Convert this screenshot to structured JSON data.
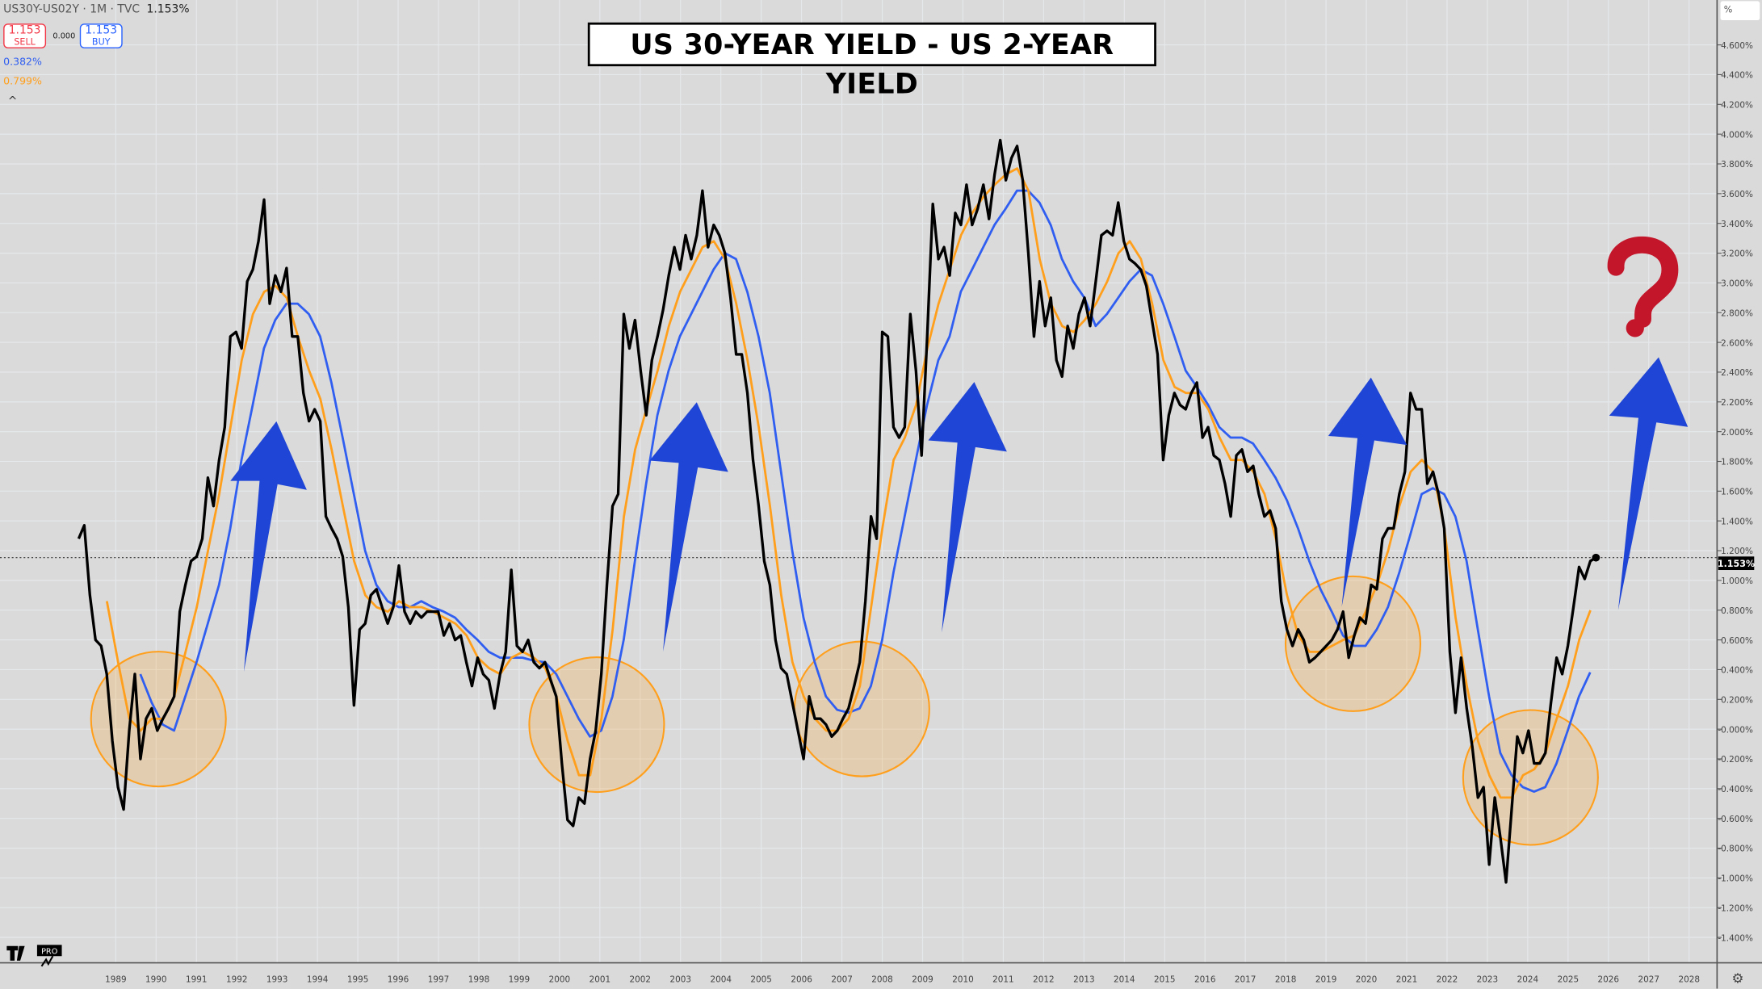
{
  "header": {
    "symbol": "US30Y-US02Y · 1M · TVC",
    "last": "1.153%"
  },
  "trade": {
    "sell_price": "1.153",
    "sell_label": "SELL",
    "spread": "0.000",
    "buy_price": "1.153",
    "buy_label": "BUY"
  },
  "legend": {
    "blue_value": "0.382%",
    "orange_value": "0.799%",
    "collapse": "^"
  },
  "title": "US 30-YEAR YIELD - US 2-YEAR YIELD",
  "axis_unit": "%",
  "last_price_label": "1.153%",
  "logo_text": "TV PRO",
  "colors": {
    "price": "#000000",
    "fast_ma": "#ff9f1c",
    "slow_ma": "#2f5ef0",
    "arrow": "#1f45d6",
    "question": "#c4162a",
    "circle": "#ff9f1c"
  },
  "chart_data": {
    "type": "line",
    "title": "US 30-YEAR YIELD - US 2-YEAR YIELD",
    "xlabel": "",
    "ylabel": "%",
    "xlim": [
      1986.1,
      2029.6
    ],
    "ylim": [
      -1.56,
      4.9
    ],
    "grid": true,
    "last_value": 1.153,
    "x_ticks": [
      "1989",
      "1990",
      "1991",
      "1992",
      "1993",
      "1994",
      "1995",
      "1996",
      "1997",
      "1998",
      "1999",
      "2000",
      "2001",
      "2002",
      "2003",
      "2004",
      "2005",
      "2006",
      "2007",
      "2008",
      "2009",
      "2010",
      "2011",
      "2012",
      "2013",
      "2014",
      "2015",
      "2016",
      "2017",
      "2018",
      "2019",
      "2020",
      "2021",
      "2022",
      "2023",
      "2024",
      "2025",
      "2026",
      "2027",
      "2028"
    ],
    "y_ticks": [
      "4.600%",
      "4.400%",
      "4.200%",
      "4.000%",
      "3.800%",
      "3.600%",
      "3.400%",
      "3.200%",
      "3.000%",
      "2.800%",
      "2.600%",
      "2.400%",
      "2.200%",
      "2.000%",
      "1.800%",
      "1.600%",
      "1.400%",
      "1.200%",
      "1.000%",
      "0.800%",
      "0.600%",
      "0.400%",
      "0.200%",
      "-0.000%",
      "-0.200%",
      "-0.400%",
      "-0.600%",
      "-0.800%",
      "-1.000%",
      "-1.200%",
      "-1.400%"
    ],
    "series": [
      {
        "name": "US30Y-US02Y",
        "color": "#000000",
        "x_start": 1988.08,
        "x_step": 0.1393,
        "values": [
          1.28,
          1.37,
          0.9,
          0.6,
          0.56,
          0.37,
          -0.08,
          -0.39,
          -0.54,
          -0.01,
          0.37,
          -0.2,
          0.07,
          0.14,
          -0.01,
          0.07,
          0.14,
          0.22,
          0.79,
          0.97,
          1.13,
          1.16,
          1.28,
          1.69,
          1.5,
          1.81,
          2.03,
          2.64,
          2.67,
          2.56,
          3.01,
          3.09,
          3.28,
          3.56,
          2.86,
          3.05,
          2.94,
          3.1,
          2.64,
          2.64,
          2.26,
          2.07,
          2.15,
          2.07,
          1.43,
          1.35,
          1.28,
          1.16,
          0.82,
          0.16,
          0.67,
          0.71,
          0.9,
          0.94,
          0.82,
          0.71,
          0.82,
          1.1,
          0.79,
          0.71,
          0.79,
          0.75,
          0.79,
          0.79,
          0.79,
          0.63,
          0.71,
          0.6,
          0.63,
          0.45,
          0.29,
          0.48,
          0.37,
          0.33,
          0.14,
          0.37,
          0.52,
          1.07,
          0.56,
          0.52,
          0.6,
          0.45,
          0.41,
          0.45,
          0.33,
          0.22,
          -0.23,
          -0.61,
          -0.65,
          -0.46,
          -0.5,
          -0.2,
          -0.01,
          0.37,
          0.97,
          1.5,
          1.58,
          2.79,
          2.56,
          2.75,
          2.41,
          2.11,
          2.48,
          2.64,
          2.82,
          3.05,
          3.24,
          3.09,
          3.32,
          3.16,
          3.32,
          3.62,
          3.24,
          3.39,
          3.32,
          3.2,
          2.9,
          2.52,
          2.52,
          2.26,
          1.81,
          1.5,
          1.13,
          0.97,
          0.6,
          0.41,
          0.37,
          0.18,
          -0.01,
          -0.2,
          0.22,
          0.07,
          0.07,
          0.03,
          -0.05,
          -0.01,
          0.07,
          0.14,
          0.29,
          0.45,
          0.86,
          1.43,
          1.28,
          2.67,
          2.64,
          2.03,
          1.96,
          2.03,
          2.79,
          2.41,
          1.84,
          2.64,
          3.53,
          3.16,
          3.24,
          3.05,
          3.47,
          3.39,
          3.66,
          3.39,
          3.5,
          3.66,
          3.43,
          3.73,
          3.96,
          3.69,
          3.84,
          3.92,
          3.69,
          3.2,
          2.64,
          3.01,
          2.71,
          2.9,
          2.48,
          2.37,
          2.71,
          2.56,
          2.79,
          2.9,
          2.71,
          3.01,
          3.32,
          3.35,
          3.32,
          3.54,
          3.28,
          3.16,
          3.13,
          3.09,
          2.98,
          2.75,
          2.52,
          1.81,
          2.11,
          2.26,
          2.18,
          2.15,
          2.26,
          2.33,
          1.96,
          2.03,
          1.84,
          1.81,
          1.65,
          1.43,
          1.84,
          1.88,
          1.73,
          1.77,
          1.58,
          1.43,
          1.47,
          1.35,
          0.86,
          0.67,
          0.56,
          0.67,
          0.6,
          0.45,
          0.48,
          0.52,
          0.56,
          0.6,
          0.67,
          0.79,
          0.48,
          0.63,
          0.75,
          0.71,
          0.97,
          0.94,
          1.28,
          1.35,
          1.35,
          1.58,
          1.73,
          2.26,
          2.15,
          2.15,
          1.65,
          1.73,
          1.58,
          1.35,
          0.52,
          0.11,
          0.48,
          0.14,
          -0.12,
          -0.46,
          -0.39,
          -0.91,
          -0.46,
          -0.73,
          -1.03,
          -0.54,
          -0.05,
          -0.16,
          -0.01,
          -0.23,
          -0.23,
          -0.16,
          0.18,
          0.48,
          0.37,
          0.56,
          0.82,
          1.09,
          1.01,
          1.13,
          1.153
        ]
      },
      {
        "name": "Fast MA",
        "color": "#ff9f1c",
        "x_start": 1988.78,
        "x_step": 0.2786,
        "values": [
          0.86,
          0.45,
          0.07,
          -0.01,
          0.07,
          0.07,
          0.22,
          0.52,
          0.82,
          1.2,
          1.58,
          2.03,
          2.48,
          2.79,
          2.94,
          2.98,
          2.9,
          2.64,
          2.41,
          2.22,
          1.88,
          1.5,
          1.13,
          0.9,
          0.82,
          0.79,
          0.86,
          0.82,
          0.82,
          0.79,
          0.75,
          0.71,
          0.63,
          0.48,
          0.41,
          0.37,
          0.48,
          0.52,
          0.48,
          0.41,
          0.22,
          -0.08,
          -0.31,
          -0.31,
          0.07,
          0.67,
          1.43,
          1.88,
          2.15,
          2.41,
          2.71,
          2.94,
          3.09,
          3.24,
          3.28,
          3.16,
          2.86,
          2.48,
          2.03,
          1.5,
          0.9,
          0.45,
          0.22,
          0.07,
          -0.01,
          -0.01,
          0.07,
          0.29,
          0.82,
          1.35,
          1.81,
          1.96,
          2.18,
          2.56,
          2.86,
          3.09,
          3.32,
          3.47,
          3.58,
          3.66,
          3.73,
          3.77,
          3.62,
          3.16,
          2.86,
          2.71,
          2.67,
          2.75,
          2.86,
          3.01,
          3.2,
          3.28,
          3.16,
          2.86,
          2.48,
          2.3,
          2.26,
          2.26,
          2.15,
          1.96,
          1.81,
          1.81,
          1.73,
          1.58,
          1.28,
          0.9,
          0.63,
          0.52,
          0.52,
          0.56,
          0.6,
          0.63,
          0.79,
          0.97,
          1.2,
          1.5,
          1.73,
          1.81,
          1.73,
          1.35,
          0.75,
          0.29,
          -0.08,
          -0.31,
          -0.46,
          -0.46,
          -0.31,
          -0.27,
          -0.16,
          0.07,
          0.29,
          0.6,
          0.799
        ]
      },
      {
        "name": "Slow MA",
        "color": "#2f5ef0",
        "x_start": 1989.61,
        "x_step": 0.2786,
        "values": [
          0.37,
          0.18,
          0.03,
          -0.01,
          0.22,
          0.45,
          0.71,
          0.97,
          1.35,
          1.81,
          2.18,
          2.56,
          2.75,
          2.86,
          2.86,
          2.79,
          2.64,
          2.33,
          1.96,
          1.58,
          1.2,
          0.97,
          0.86,
          0.82,
          0.82,
          0.86,
          0.82,
          0.79,
          0.75,
          0.67,
          0.6,
          0.52,
          0.48,
          0.48,
          0.48,
          0.46,
          0.45,
          0.37,
          0.22,
          0.07,
          -0.05,
          -0.01,
          0.22,
          0.6,
          1.13,
          1.65,
          2.11,
          2.41,
          2.64,
          2.79,
          2.94,
          3.09,
          3.2,
          3.16,
          2.94,
          2.64,
          2.26,
          1.73,
          1.2,
          0.75,
          0.45,
          0.22,
          0.13,
          0.11,
          0.14,
          0.29,
          0.6,
          1.05,
          1.43,
          1.81,
          2.18,
          2.48,
          2.64,
          2.94,
          3.09,
          3.24,
          3.39,
          3.5,
          3.62,
          3.62,
          3.54,
          3.39,
          3.16,
          3.01,
          2.9,
          2.71,
          2.79,
          2.9,
          3.01,
          3.09,
          3.05,
          2.86,
          2.64,
          2.41,
          2.3,
          2.18,
          2.03,
          1.96,
          1.96,
          1.92,
          1.81,
          1.69,
          1.54,
          1.35,
          1.13,
          0.94,
          0.79,
          0.63,
          0.56,
          0.56,
          0.67,
          0.82,
          1.05,
          1.31,
          1.58,
          1.62,
          1.58,
          1.43,
          1.13,
          0.67,
          0.22,
          -0.16,
          -0.31,
          -0.39,
          -0.42,
          -0.39,
          -0.23,
          -0.01,
          0.22,
          0.382
        ]
      }
    ],
    "annotations": [
      "5 highlighted troughs (orange circles)",
      "5 upward arrows",
      "question mark"
    ]
  }
}
